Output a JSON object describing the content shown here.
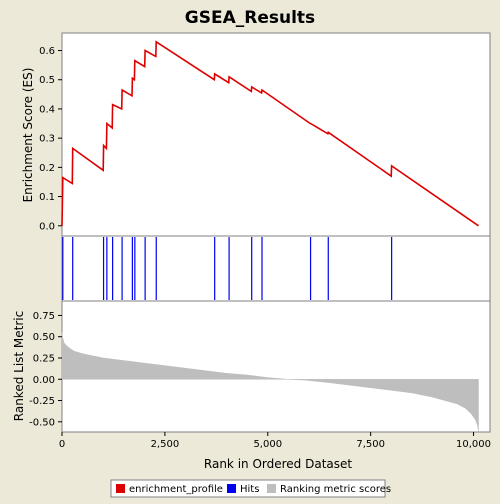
{
  "chart_data": {
    "type": "line",
    "title": "GSEA_Results",
    "xlabel": "Rank in Ordered Dataset",
    "xlim": [
      0,
      10400
    ],
    "x_ticks": [
      0,
      2500,
      5000,
      7500,
      10000
    ],
    "x_tick_labels": [
      "0",
      "2,500",
      "5,000",
      "7,500",
      "10,000"
    ],
    "enrichment_panel": {
      "ylabel": "Enrichment Score (ES)",
      "ylim": [
        -0.035,
        0.66
      ],
      "y_ticks": [
        0.0,
        0.1,
        0.2,
        0.3,
        0.4,
        0.5,
        0.6
      ],
      "y_tick_labels": [
        "0.0",
        "0.1",
        "0.2",
        "0.3",
        "0.4",
        "0.5",
        "0.6"
      ],
      "series": [
        {
          "name": "enrichment_profile",
          "color": "#dd0000",
          "x": [
            0,
            20,
            250,
            260,
            1000,
            1010,
            1080,
            1090,
            1220,
            1230,
            1450,
            1460,
            1700,
            1710,
            1760,
            1770,
            2010,
            2020,
            2280,
            2290,
            3700,
            3710,
            4050,
            4060,
            4600,
            4610,
            4850,
            4860,
            6030,
            6040,
            6460,
            6470,
            8000,
            8010,
            10120
          ],
          "y": [
            0.0,
            0.165,
            0.145,
            0.265,
            0.19,
            0.275,
            0.265,
            0.35,
            0.335,
            0.415,
            0.4,
            0.465,
            0.445,
            0.505,
            0.5,
            0.565,
            0.545,
            0.6,
            0.58,
            0.63,
            0.5,
            0.52,
            0.49,
            0.51,
            0.46,
            0.475,
            0.455,
            0.465,
            0.35,
            0.35,
            0.315,
            0.32,
            0.17,
            0.205,
            0.0
          ]
        }
      ]
    },
    "hits_panel": {
      "series_name": "Hits",
      "color": "#0000ee",
      "positions": [
        20,
        260,
        1010,
        1090,
        1230,
        1460,
        1710,
        1770,
        2020,
        2290,
        3710,
        4060,
        4610,
        4860,
        6040,
        6470,
        8010
      ]
    },
    "ranking_panel": {
      "ylabel": "Ranked List Metric",
      "ylim": [
        -0.62,
        0.92
      ],
      "y_ticks": [
        -0.5,
        -0.25,
        0.0,
        0.25,
        0.5,
        0.75
      ],
      "y_tick_labels": [
        "-0.50",
        "-0.25",
        "0.00",
        "0.25",
        "0.50",
        "0.75"
      ],
      "series_name": "Ranking metric scores",
      "color": "#bebebe",
      "x": [
        0,
        10,
        50,
        100,
        200,
        300,
        500,
        800,
        1000,
        1500,
        2000,
        2500,
        3000,
        3500,
        4000,
        4500,
        5000,
        5500,
        5900,
        6500,
        7000,
        7500,
        8000,
        8500,
        9000,
        9300,
        9600,
        9800,
        9950,
        10050,
        10100,
        10120
      ],
      "y": [
        0.55,
        0.5,
        0.43,
        0.4,
        0.36,
        0.33,
        0.3,
        0.27,
        0.25,
        0.22,
        0.19,
        0.16,
        0.13,
        0.1,
        0.07,
        0.05,
        0.02,
        0.0,
        -0.01,
        -0.04,
        -0.07,
        -0.1,
        -0.13,
        -0.16,
        -0.21,
        -0.25,
        -0.29,
        -0.34,
        -0.41,
        -0.48,
        -0.55,
        -0.62
      ]
    },
    "legend": {
      "placement": "bottom",
      "items": [
        {
          "label": "enrichment_profile",
          "color": "#dd0000"
        },
        {
          "label": "Hits",
          "color": "#0000ee"
        },
        {
          "label": "Ranking metric scores",
          "color": "#bebebe"
        }
      ]
    }
  }
}
